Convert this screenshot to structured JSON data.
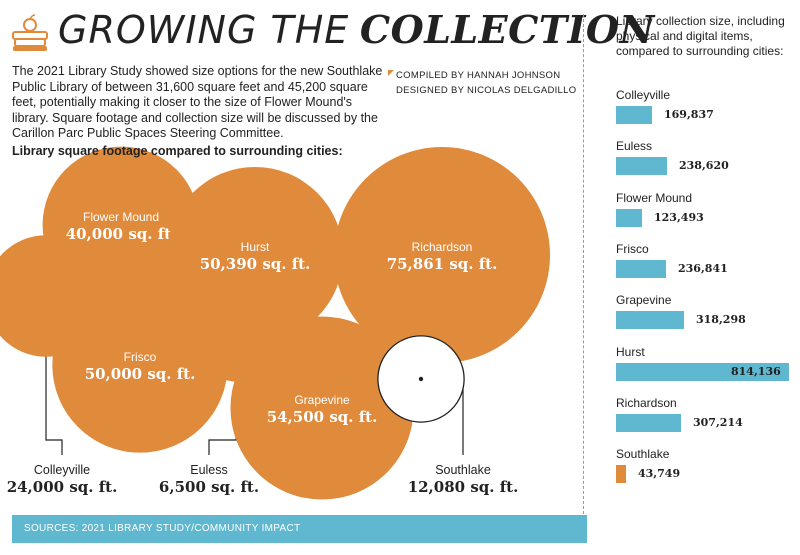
{
  "header": {
    "title_part1": "GROWING THE",
    "title_part2": "COLLECTION",
    "icon": "books-with-apple-icon"
  },
  "intro": "The 2021 Library Study showed size options for the new Southlake Public Library of between 31,600 square feet and 45,200 square feet, potentially making it closer to the size of Flower Mound's library. Square footage and collection size will be discussed by the Carillon Parc Public Spaces Steering Committee.",
  "credits": {
    "compiled": "COMPILED BY HANNAH JOHNSON",
    "designed": "DESIGNED BY NICOLAS DELGADILLO"
  },
  "subhead": "Library square footage compared to surrounding cities:",
  "right_title": "Library collection size, including physical and digital items, compared to surrounding cities:",
  "footer": "SOURCES: 2021 LIBRARY STUDY/COMMUNITY IMPACT",
  "colors": {
    "orange": "#e08a3c",
    "blue": "#5fb8cf",
    "outline": "#222222"
  },
  "chart_data": [
    {
      "type": "bubble",
      "title": "Library square footage compared to surrounding cities:",
      "unit": "sq. ft.",
      "items": [
        {
          "city": "Flower Mound",
          "value": 40000,
          "display": "40,000 sq. ft.",
          "label_position": "inside"
        },
        {
          "city": "Hurst",
          "value": 50390,
          "display": "50,390 sq. ft.",
          "label_position": "inside"
        },
        {
          "city": "Richardson",
          "value": 75861,
          "display": "75,861 sq. ft.",
          "label_position": "inside"
        },
        {
          "city": "Colleyville",
          "value": 24000,
          "display": "24,000 sq. ft.",
          "label_position": "outside"
        },
        {
          "city": "Frisco",
          "value": 50000,
          "display": "50,000 sq. ft.",
          "label_position": "inside"
        },
        {
          "city": "Euless",
          "value": 6500,
          "display": "6,500 sq. ft.",
          "label_position": "outside"
        },
        {
          "city": "Grapevine",
          "value": 54500,
          "display": "54,500 sq. ft.",
          "label_position": "inside"
        },
        {
          "city": "Southlake",
          "value": 12080,
          "display": "12,080 sq. ft.",
          "label_position": "outside",
          "highlight": "outline"
        }
      ]
    },
    {
      "type": "bar",
      "orientation": "horizontal",
      "title": "Library collection size, including physical and digital items, compared to surrounding cities:",
      "categories": [
        "Colleyville",
        "Euless",
        "Flower Mound",
        "Frisco",
        "Grapevine",
        "Hurst",
        "Richardson",
        "Southlake"
      ],
      "values": [
        169837,
        238620,
        123493,
        236841,
        318298,
        814136,
        307214,
        43749
      ],
      "display": [
        "169,837",
        "238,620",
        "123,493",
        "236,841",
        "318,298",
        "814,136",
        "307,214",
        "43,749"
      ],
      "highlight_category": "Southlake",
      "xlim": [
        0,
        814136
      ]
    }
  ]
}
